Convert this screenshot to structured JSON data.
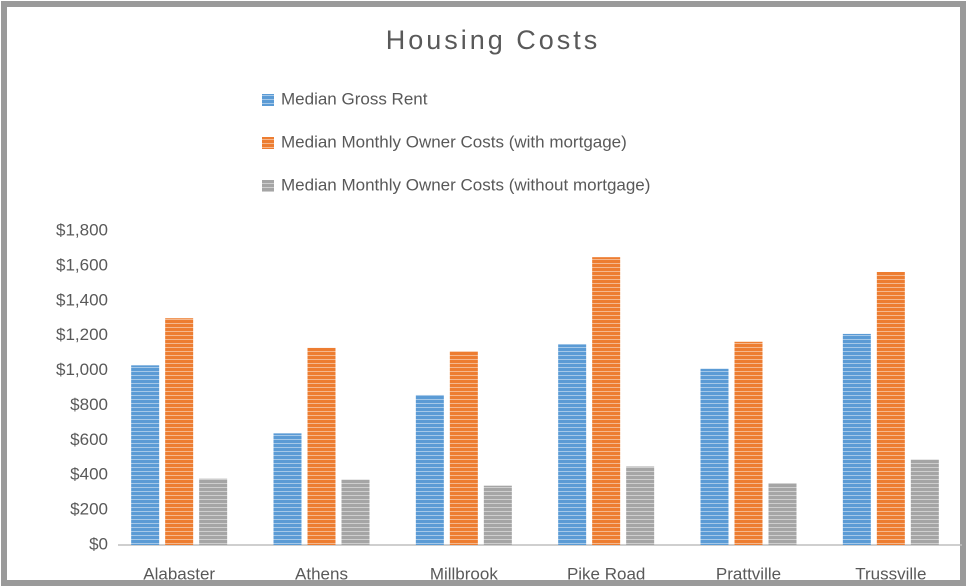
{
  "chart_data": {
    "type": "bar",
    "title": "Housing Costs",
    "categories": [
      "Alabaster",
      "Athens",
      "Millbrook",
      "Pike Road",
      "Prattville",
      "Trussville"
    ],
    "series": [
      {
        "name": "Median Gross Rent",
        "color": "#5b9bd5",
        "values": [
          1030,
          640,
          860,
          1150,
          1010,
          1210
        ]
      },
      {
        "name": "Median Monthly Owner Costs (with mortgage)",
        "color": "#ed7d31",
        "values": [
          1300,
          1130,
          1110,
          1650,
          1165,
          1565
        ]
      },
      {
        "name": "Median Monthly Owner Costs (without mortgage)",
        "color": "#a5a5a5",
        "values": [
          380,
          375,
          340,
          450,
          355,
          490
        ]
      }
    ],
    "ylim": [
      0,
      1800
    ],
    "yticks": [
      {
        "value": 0,
        "label": "$0"
      },
      {
        "value": 200,
        "label": "$200"
      },
      {
        "value": 400,
        "label": "$400"
      },
      {
        "value": 600,
        "label": "$600"
      },
      {
        "value": 800,
        "label": "$800"
      },
      {
        "value": 1000,
        "label": "$1,000"
      },
      {
        "value": 1200,
        "label": "$1,200"
      },
      {
        "value": 1400,
        "label": "$1,400"
      },
      {
        "value": 1600,
        "label": "$1,600"
      },
      {
        "value": 1800,
        "label": "$1,800"
      }
    ],
    "grid": false,
    "legend": "top"
  }
}
